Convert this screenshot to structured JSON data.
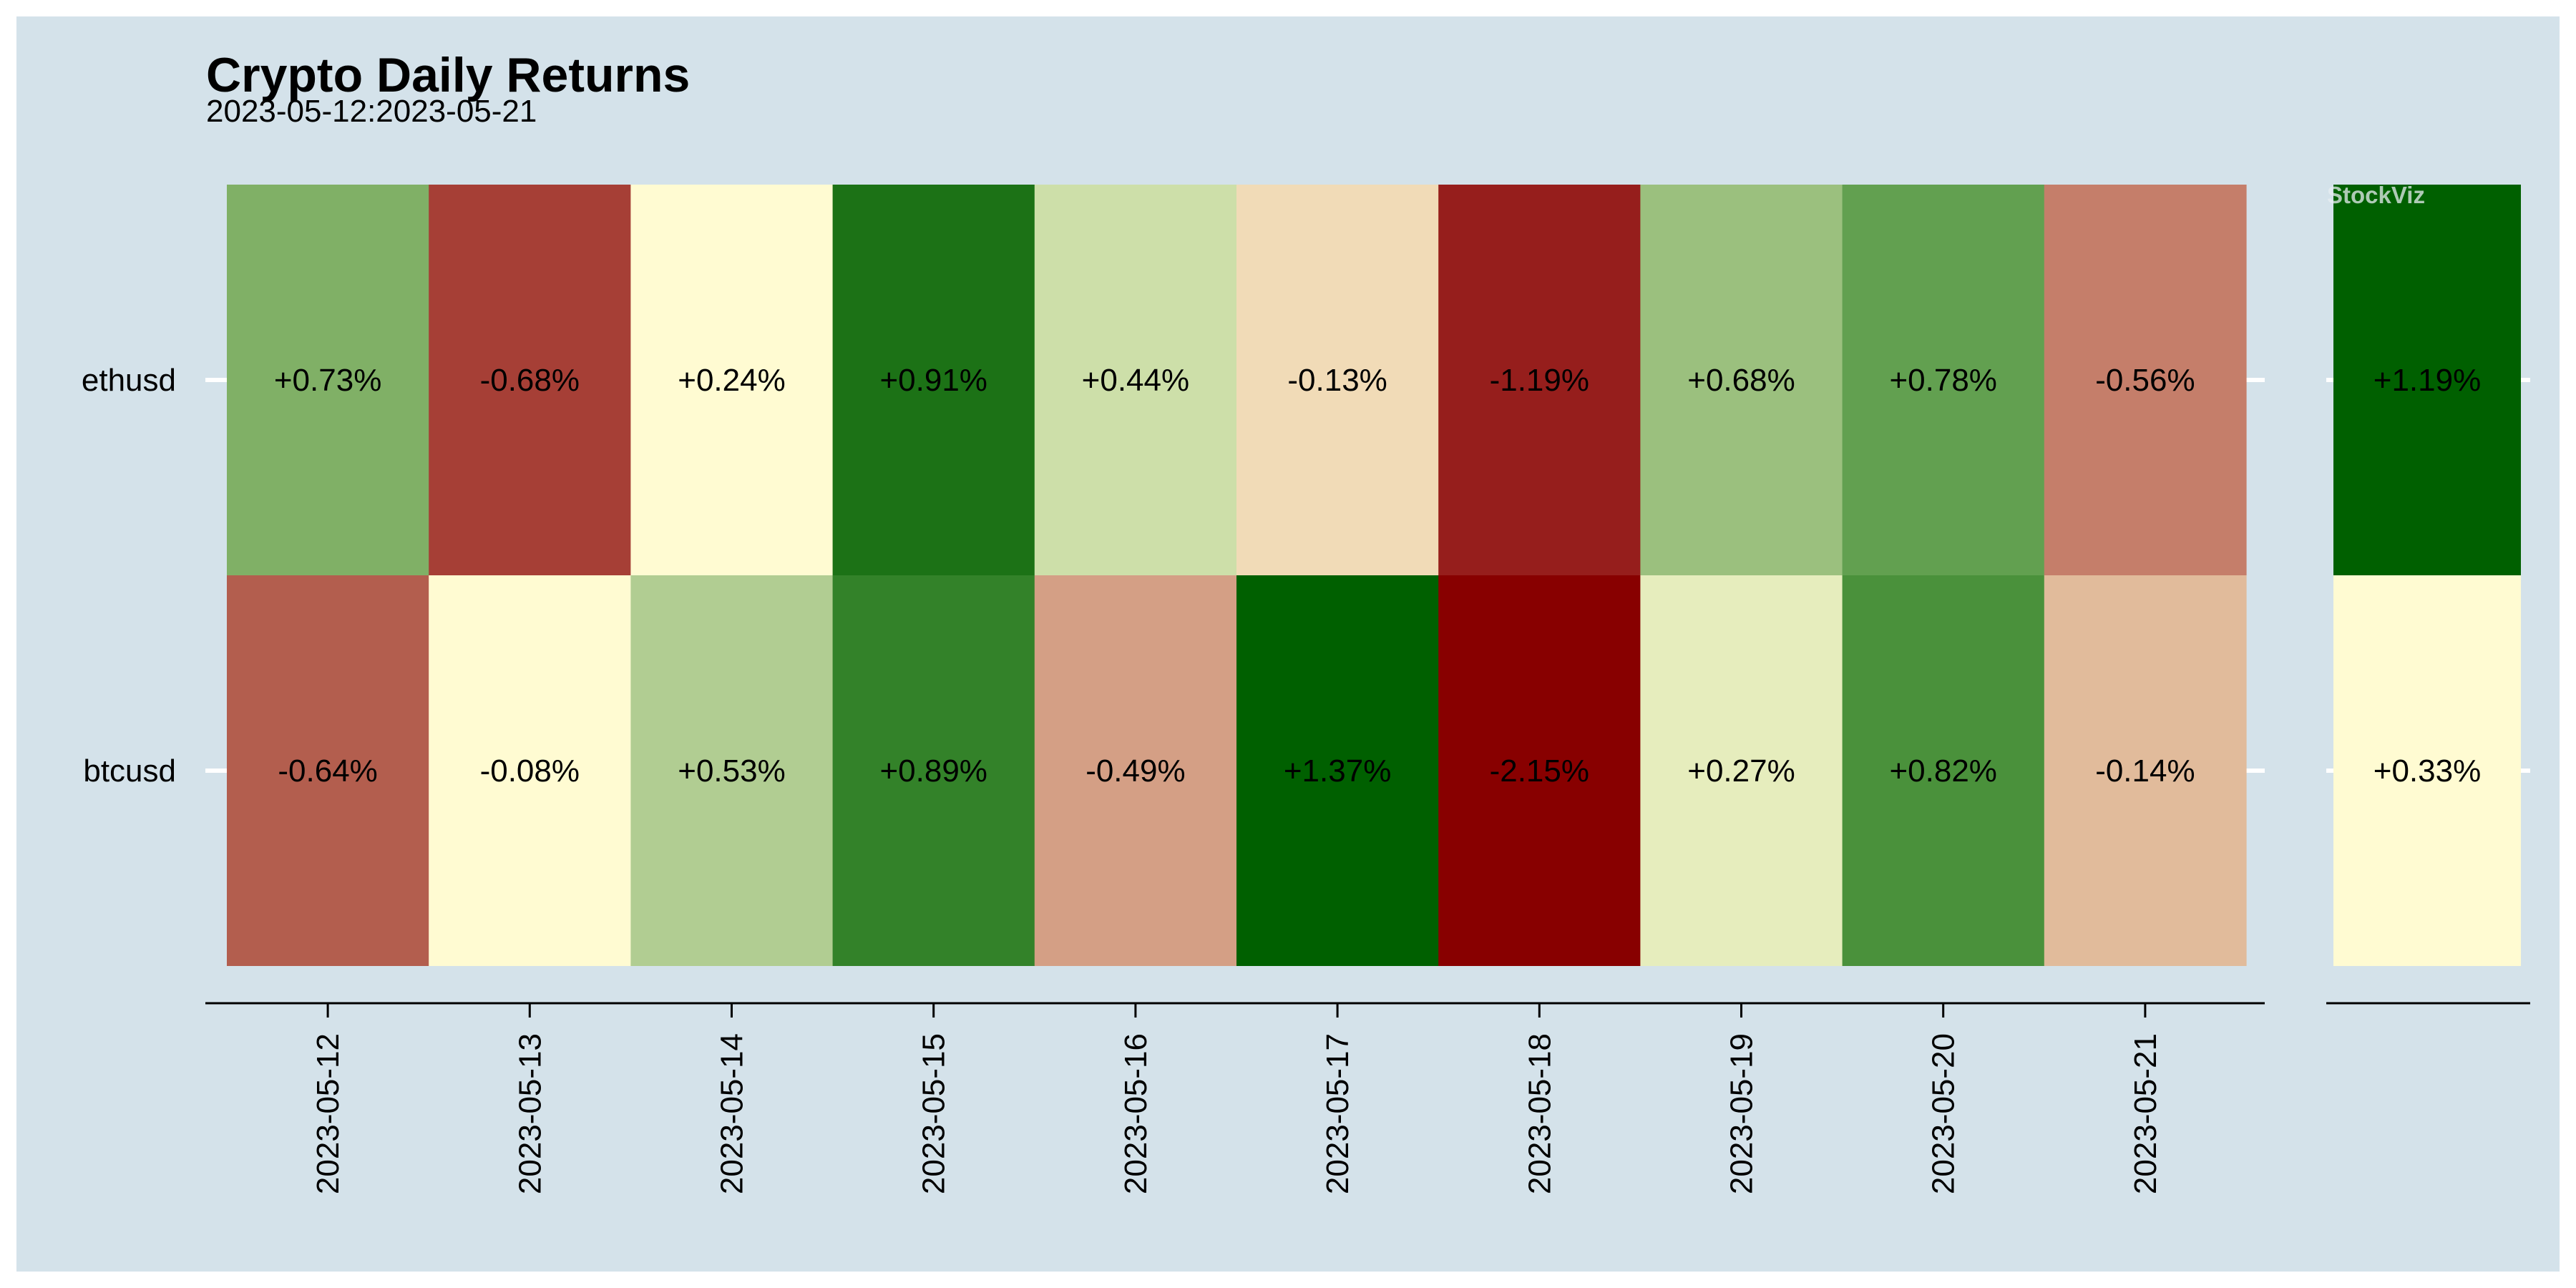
{
  "chart_data": {
    "type": "heatmap",
    "title": "Crypto Daily Returns",
    "subtitle": "2023-05-12:2023-05-21",
    "watermark": "StockViz",
    "rows": [
      "ethusd",
      "btcusd"
    ],
    "columns": [
      "2023-05-12",
      "2023-05-13",
      "2023-05-14",
      "2023-05-15",
      "2023-05-16",
      "2023-05-17",
      "2023-05-18",
      "2023-05-19",
      "2023-05-20",
      "2023-05-21"
    ],
    "values": [
      [
        0.73,
        -0.68,
        0.24,
        0.91,
        0.44,
        -0.13,
        -1.19,
        0.68,
        0.78,
        -0.56
      ],
      [
        -0.64,
        -0.08,
        0.53,
        0.89,
        -0.49,
        1.37,
        -2.15,
        0.27,
        0.82,
        -0.14
      ]
    ],
    "labels": [
      [
        "+0.73%",
        "-0.68%",
        "+0.24%",
        "+0.91%",
        "+0.44%",
        "-0.13%",
        "-1.19%",
        "+0.68%",
        "+0.78%",
        "-0.56%"
      ],
      [
        "-0.64%",
        "-0.08%",
        "+0.53%",
        "+0.89%",
        "-0.49%",
        "+1.37%",
        "-2.15%",
        "+0.27%",
        "+0.82%",
        "-0.14%"
      ]
    ],
    "cell_colors": [
      [
        "#80b066",
        "#a63f36",
        "#fffbd2",
        "#1c7216",
        "#cddfa9",
        "#f1dbb7",
        "#961e1c",
        "#9bc07e",
        "#62a050",
        "#c57e6a"
      ],
      [
        "#b35e4e",
        "#fffbd2",
        "#b1cd92",
        "#338229",
        "#d49f85",
        "#006000",
        "#880000",
        "#e6edbd",
        "#4a913b",
        "#e1bb9b"
      ]
    ],
    "summary": {
      "values": [
        1.19,
        0.33
      ],
      "labels": [
        "+1.19%",
        "+0.33%"
      ],
      "cell_colors": [
        "#006000",
        "#fffbd2"
      ]
    },
    "colors": {
      "background": "#d4e2ea",
      "positive": "#006000",
      "neutral": "#fffbd2",
      "negative": "#880000"
    }
  }
}
